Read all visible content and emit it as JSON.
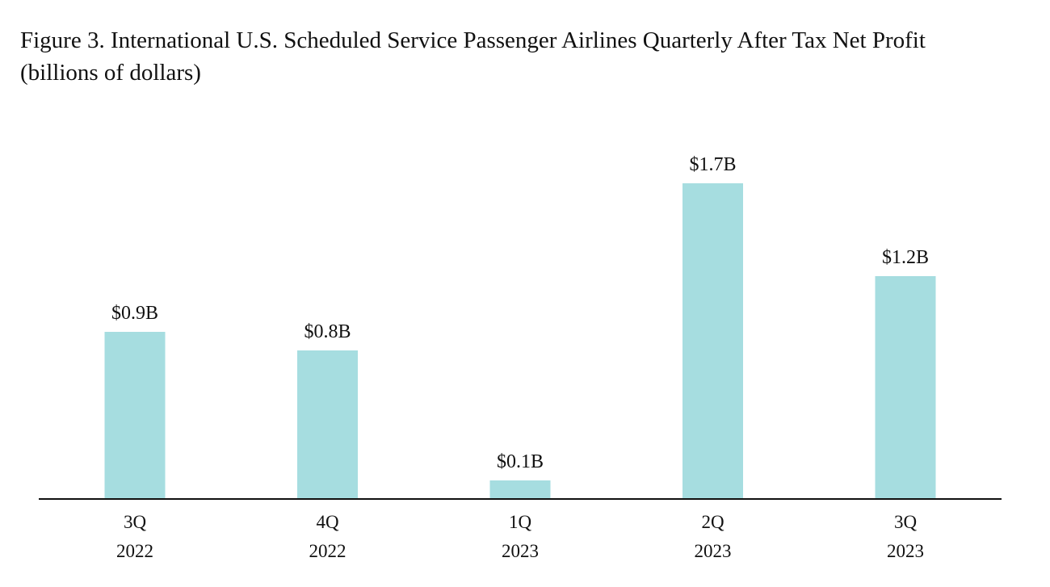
{
  "chart_data": {
    "type": "bar",
    "title": "Figure 3. International U.S. Scheduled Service Passenger Airlines Quarterly After Tax Net Profit",
    "subtitle": "(billions of dollars)",
    "categories": [
      {
        "quarter": "3Q",
        "year": "2022"
      },
      {
        "quarter": "4Q",
        "year": "2022"
      },
      {
        "quarter": "1Q",
        "year": "2023"
      },
      {
        "quarter": "2Q",
        "year": "2023"
      },
      {
        "quarter": "3Q",
        "year": "2023"
      }
    ],
    "values": [
      0.9,
      0.8,
      0.1,
      1.7,
      1.2
    ],
    "data_labels": [
      "$0.9B",
      "$0.8B",
      "$0.1B",
      "$1.7B",
      "$1.2B"
    ],
    "ylim": [
      0,
      1.7
    ],
    "grid": false,
    "legend": "none",
    "colors": {
      "bar": "#a6dde0",
      "axis": "#111111"
    }
  }
}
